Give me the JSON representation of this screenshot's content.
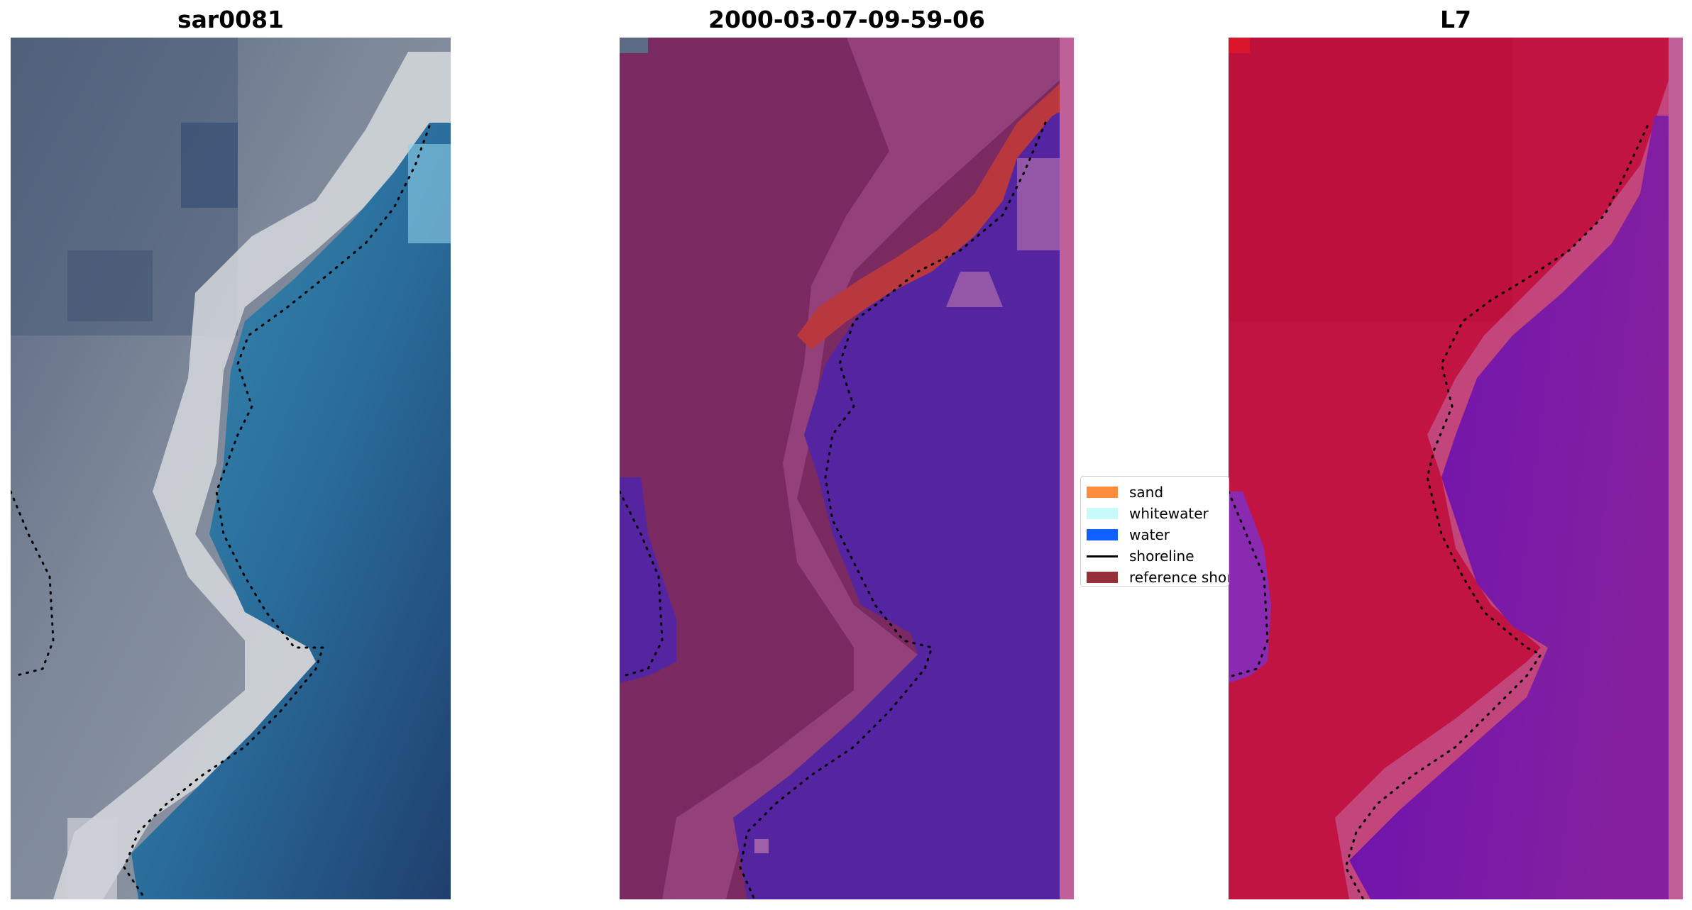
{
  "panels": [
    {
      "title": "sar0081",
      "image": "rgb satellite composite"
    },
    {
      "title": "2000-03-07-09-59-06",
      "image": "classified image overlay"
    },
    {
      "title": "L7",
      "image": "index image"
    }
  ],
  "legend": {
    "items": [
      {
        "label": "sand",
        "color": "#ff8c3a"
      },
      {
        "label": "whitewater",
        "color": "#c8fafa"
      },
      {
        "label": "water",
        "color": "#1060ff"
      },
      {
        "label": "shoreline",
        "color": "#000000"
      },
      {
        "label": "reference shoreline",
        "color": "#943036"
      }
    ]
  },
  "colors": {
    "panel1_land": "#8e96a4",
    "panel1_water": "#24507e",
    "panel2_land": "#7a2a60",
    "panel2_water": "#5524a0",
    "panel2_reference": "#b8383e",
    "panel3_land": "#c21443",
    "panel3_water": "#7a18a6"
  }
}
